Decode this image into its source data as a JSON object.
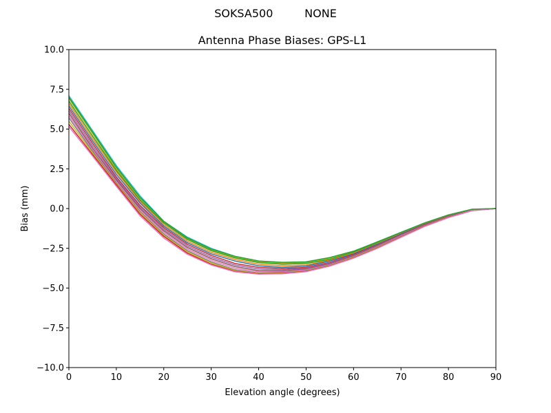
{
  "figure": {
    "suptitle_left": "SOKSA500",
    "suptitle_right": "NONE"
  },
  "chart_data": {
    "type": "line",
    "title": "Antenna Phase Biases: GPS-L1",
    "xlabel": "Elevation angle (degrees)",
    "ylabel": "Bias (mm)",
    "xlim": [
      0,
      90
    ],
    "ylim": [
      -10,
      10
    ],
    "xticks": [
      0,
      10,
      20,
      30,
      40,
      50,
      60,
      70,
      80,
      90
    ],
    "xtick_labels": [
      "0",
      "10",
      "20",
      "30",
      "40",
      "50",
      "60",
      "70",
      "80",
      "90"
    ],
    "yticks": [
      -10,
      -7.5,
      -5,
      -2.5,
      0,
      2.5,
      5,
      7.5,
      10
    ],
    "ytick_labels": [
      "−10.0",
      "−7.5",
      "−5.0",
      "−2.5",
      "0.0",
      "2.5",
      "5.0",
      "7.5",
      "10.0"
    ],
    "grid": false,
    "legend": "none",
    "x": [
      0,
      5,
      10,
      15,
      20,
      25,
      30,
      35,
      40,
      45,
      50,
      55,
      60,
      65,
      70,
      75,
      80,
      85,
      90
    ],
    "series": [
      {
        "color": "#17becf",
        "values": [
          7.1,
          4.9,
          2.7,
          0.8,
          -0.8,
          -1.8,
          -2.5,
          -3.0,
          -3.3,
          -3.4,
          -3.4,
          -3.1,
          -2.7,
          -2.1,
          -1.5,
          -0.9,
          -0.4,
          -0.05,
          0.0
        ]
      },
      {
        "color": "#bcbd22",
        "values": [
          6.9,
          4.7,
          2.5,
          0.65,
          -0.85,
          -1.9,
          -2.6,
          -3.05,
          -3.35,
          -3.45,
          -3.42,
          -3.15,
          -2.72,
          -2.15,
          -1.52,
          -0.92,
          -0.42,
          -0.06,
          0.0
        ]
      },
      {
        "color": "#2ca02c",
        "values": [
          6.75,
          4.55,
          2.4,
          0.55,
          -0.9,
          -1.95,
          -2.65,
          -3.1,
          -3.4,
          -3.5,
          -3.45,
          -3.2,
          -2.75,
          -2.18,
          -1.55,
          -0.95,
          -0.45,
          -0.07,
          0.0
        ]
      },
      {
        "color": "#ff7f0e",
        "values": [
          6.6,
          4.4,
          2.3,
          0.45,
          -1.0,
          -2.05,
          -2.75,
          -3.2,
          -3.5,
          -3.6,
          -3.55,
          -3.25,
          -2.8,
          -2.22,
          -1.58,
          -0.97,
          -0.46,
          -0.08,
          0.0
        ]
      },
      {
        "color": "#1f77b4",
        "values": [
          6.45,
          4.25,
          2.15,
          0.35,
          -1.1,
          -2.15,
          -2.85,
          -3.3,
          -3.6,
          -3.7,
          -3.62,
          -3.3,
          -2.85,
          -2.25,
          -1.6,
          -0.99,
          -0.48,
          -0.09,
          0.0
        ]
      },
      {
        "color": "#d62728",
        "values": [
          6.3,
          4.1,
          2.0,
          0.2,
          -1.2,
          -2.25,
          -2.95,
          -3.45,
          -3.7,
          -3.78,
          -3.7,
          -3.38,
          -2.9,
          -2.3,
          -1.64,
          -1.01,
          -0.5,
          -0.1,
          0.0
        ]
      },
      {
        "color": "#9467bd",
        "values": [
          6.15,
          3.95,
          1.9,
          0.1,
          -1.3,
          -2.35,
          -3.05,
          -3.55,
          -3.8,
          -3.85,
          -3.75,
          -3.42,
          -2.94,
          -2.33,
          -1.67,
          -1.03,
          -0.51,
          -0.1,
          0.0
        ]
      },
      {
        "color": "#8c564b",
        "values": [
          6.0,
          3.8,
          1.8,
          0.0,
          -1.4,
          -2.45,
          -3.15,
          -3.65,
          -3.9,
          -3.92,
          -3.8,
          -3.47,
          -2.98,
          -2.37,
          -1.7,
          -1.05,
          -0.52,
          -0.11,
          0.0
        ]
      },
      {
        "color": "#e377c2",
        "values": [
          5.85,
          3.7,
          1.7,
          -0.1,
          -1.5,
          -2.55,
          -3.25,
          -3.75,
          -3.98,
          -3.98,
          -3.85,
          -3.52,
          -3.02,
          -2.4,
          -1.72,
          -1.07,
          -0.53,
          -0.11,
          0.0
        ]
      },
      {
        "color": "#7f7f7f",
        "values": [
          5.7,
          3.6,
          1.6,
          -0.2,
          -1.6,
          -2.65,
          -3.35,
          -3.85,
          -4.05,
          -4.03,
          -3.9,
          -3.56,
          -3.05,
          -2.43,
          -1.75,
          -1.08,
          -0.54,
          -0.12,
          0.0
        ]
      },
      {
        "color": "#bcbd22",
        "values": [
          5.5,
          3.5,
          1.55,
          -0.25,
          -1.68,
          -2.72,
          -3.42,
          -3.9,
          -4.08,
          -4.06,
          -3.93,
          -3.58,
          -3.07,
          -2.45,
          -1.77,
          -1.09,
          -0.55,
          -0.12,
          0.0
        ]
      },
      {
        "color": "#d62728",
        "values": [
          5.3,
          3.4,
          1.5,
          -0.35,
          -1.75,
          -2.8,
          -3.5,
          -3.95,
          -4.1,
          -4.08,
          -3.95,
          -3.6,
          -3.1,
          -2.48,
          -1.79,
          -1.1,
          -0.56,
          -0.13,
          0.0
        ]
      },
      {
        "color": "#e377c2",
        "values": [
          5.15,
          3.3,
          1.4,
          -0.45,
          -1.85,
          -2.88,
          -3.55,
          -3.98,
          -4.12,
          -4.1,
          -3.97,
          -3.62,
          -3.12,
          -2.5,
          -1.81,
          -1.12,
          -0.57,
          -0.13,
          0.0
        ]
      },
      {
        "color": "#2ca02c",
        "values": [
          7.0,
          4.8,
          2.6,
          0.7,
          -0.8,
          -1.85,
          -2.55,
          -3.0,
          -3.3,
          -3.38,
          -3.35,
          -3.08,
          -2.68,
          -2.1,
          -1.5,
          -0.9,
          -0.4,
          -0.04,
          0.0
        ]
      }
    ]
  }
}
